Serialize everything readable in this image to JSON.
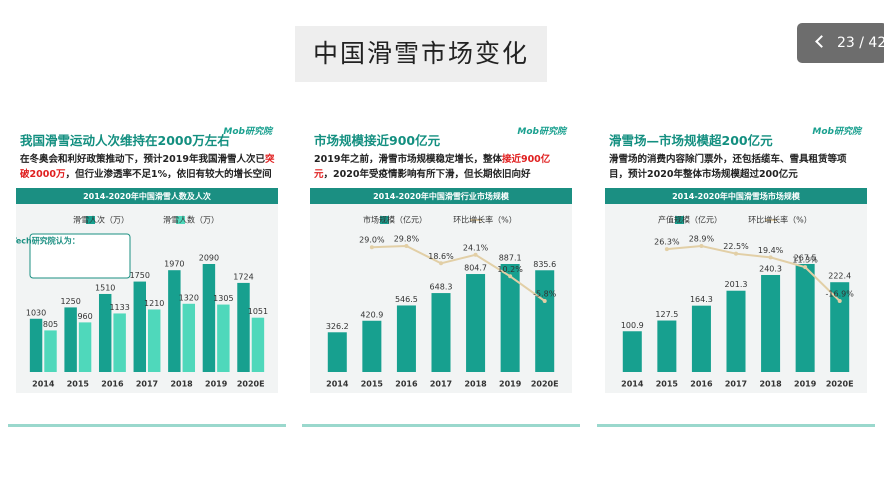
{
  "slide_title": "中国滑雪市场变化",
  "page_counter": "23 / 42",
  "chart_data": [
    {
      "type": "bar",
      "headline": "我国滑雪运动人次维持在2000万左右",
      "brand": "Mob研究院",
      "description": [
        {
          "text": "在冬奥会和利好政策推动下，预计2019年我国滑雪人次已",
          "emphasis": false
        },
        {
          "text": "突破2000万",
          "emphasis": true
        },
        {
          "text": "，但行业渗透率不足1%，依旧有较大的增长空间",
          "emphasis": false
        }
      ],
      "title": "2014-2020年中国滑雪人数及人次",
      "note": "MobTech研究院认为：",
      "categories": [
        "2014",
        "2015",
        "2016",
        "2017",
        "2018",
        "2019",
        "2020E"
      ],
      "series": [
        {
          "name": "滑雪人次（万）",
          "color": "#17a08f",
          "type": "bar",
          "values": [
            1030,
            1250,
            1510,
            1750,
            1970,
            2090,
            1724
          ]
        },
        {
          "name": "滑雪人数（万）",
          "color": "#4fd8bb",
          "type": "bar",
          "values": [
            805,
            960,
            1133,
            1210,
            1320,
            1305,
            1051
          ]
        }
      ]
    },
    {
      "type": "bar",
      "headline": "市场规模接近900亿元",
      "brand": "Mob研究院",
      "description": [
        {
          "text": "2019年之前，滑雪市场规模稳定增长，整体",
          "emphasis": false
        },
        {
          "text": "接近900亿元",
          "emphasis": true
        },
        {
          "text": "，2020年受疫情影响有所下滑，但长期依旧向好",
          "emphasis": false
        }
      ],
      "title": "2014-2020年中国滑雪行业市场规模",
      "categories": [
        "2014",
        "2015",
        "2016",
        "2017",
        "2018",
        "2019",
        "2020E"
      ],
      "series": [
        {
          "name": "市场规模（亿元）",
          "color": "#17a08f",
          "type": "bar",
          "values": [
            326.2,
            420.9,
            546.5,
            648.3,
            804.7,
            887.1,
            835.6
          ]
        },
        {
          "name": "环比增长率（%）",
          "color": "#e2cfa6",
          "type": "line",
          "values": [
            null,
            29.0,
            29.8,
            18.6,
            24.1,
            10.2,
            -5.8
          ],
          "value_labels": [
            null,
            "29.0%",
            "29.8%",
            "18.6%",
            "24.1%",
            "10.2%",
            "-5.8%"
          ]
        }
      ]
    },
    {
      "type": "bar",
      "headline": "滑雪场—市场规模超200亿元",
      "brand": "Mob研究院",
      "description": [
        {
          "text": "滑雪场的消费内容除门票外，还包括缆车、雪具租赁等项目，预计2020年整体市场规模超过200亿元",
          "emphasis": false
        }
      ],
      "title": "2014-2020年中国滑雪场市场规模",
      "categories": [
        "2014",
        "2015",
        "2016",
        "2017",
        "2018",
        "2019",
        "2020E"
      ],
      "series": [
        {
          "name": "产值规模（亿元）",
          "color": "#17a08f",
          "type": "bar",
          "values": [
            100.9,
            127.5,
            164.3,
            201.3,
            240.3,
            267.5,
            222.4
          ]
        },
        {
          "name": "环比增长率（%）",
          "color": "#e2cfa6",
          "type": "line",
          "values": [
            null,
            26.3,
            28.9,
            22.5,
            19.4,
            11.3,
            -16.9
          ],
          "value_labels": [
            null,
            "26.3%",
            "28.9%",
            "22.5%",
            "19.4%",
            "11.3%",
            "-16.9%"
          ]
        }
      ]
    }
  ]
}
